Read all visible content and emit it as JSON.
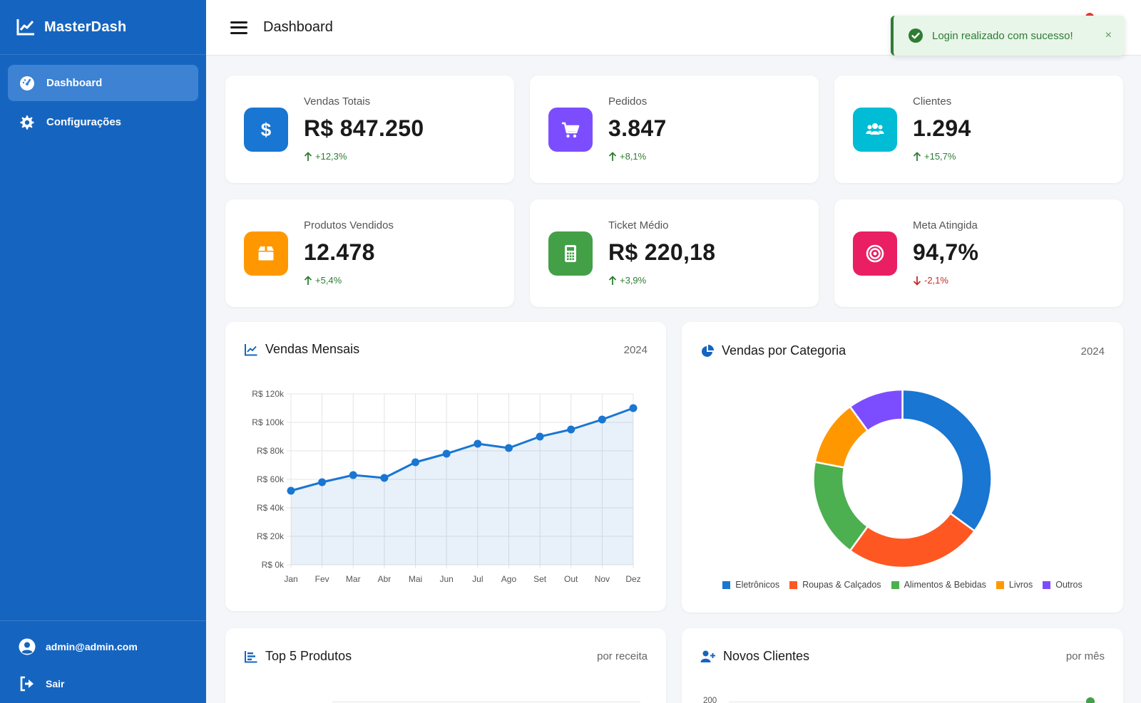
{
  "brand": {
    "name": "MasterDash"
  },
  "sidebar": {
    "items": [
      {
        "label": "Dashboard",
        "icon": "gauge-icon",
        "active": true
      },
      {
        "label": "Configurações",
        "icon": "gear-icon",
        "active": false
      }
    ],
    "user_email": "admin@admin.com",
    "logout_label": "Sair"
  },
  "header": {
    "title": "Dashboard"
  },
  "toast": {
    "message": "Login realizado com sucesso!",
    "close": "×"
  },
  "stats": [
    {
      "label": "Vendas Totais",
      "value": "R$ 847.250",
      "trend": "+12,3%",
      "direction": "up",
      "icon": "dollar-icon",
      "color": "#1976d2"
    },
    {
      "label": "Pedidos",
      "value": "3.847",
      "trend": "+8,1%",
      "direction": "up",
      "icon": "cart-icon",
      "color": "#7c4dff"
    },
    {
      "label": "Clientes",
      "value": "1.294",
      "trend": "+15,7%",
      "direction": "up",
      "icon": "users-icon",
      "color": "#00bcd4"
    },
    {
      "label": "Produtos Vendidos",
      "value": "12.478",
      "trend": "+5,4%",
      "direction": "up",
      "icon": "box-icon",
      "color": "#ff9800"
    },
    {
      "label": "Ticket Médio",
      "value": "R$ 220,18",
      "trend": "+3,9%",
      "direction": "up",
      "icon": "calculator-icon",
      "color": "#43a047"
    },
    {
      "label": "Meta Atingida",
      "value": "94,7%",
      "trend": "-2,1%",
      "direction": "down",
      "icon": "target-icon",
      "color": "#e91e63"
    }
  ],
  "line_card": {
    "title": "Vendas Mensais",
    "meta": "2024"
  },
  "donut_card": {
    "title": "Vendas por Categoria",
    "meta": "2024"
  },
  "top_card": {
    "title": "Top 5 Produtos",
    "meta": "por receita"
  },
  "clients_card": {
    "title": "Novos Clientes",
    "meta": "por mês",
    "first_tick": "200"
  },
  "chart_data": [
    {
      "type": "line",
      "title": "Vendas Mensais",
      "categories": [
        "Jan",
        "Fev",
        "Mar",
        "Abr",
        "Mai",
        "Jun",
        "Jul",
        "Ago",
        "Set",
        "Out",
        "Nov",
        "Dez"
      ],
      "values": [
        52000,
        58000,
        63000,
        61000,
        72000,
        78000,
        85000,
        82000,
        90000,
        95000,
        102000,
        110000
      ],
      "ylim": [
        0,
        120000
      ],
      "yticks": [
        "R$ 0k",
        "R$ 20k",
        "R$ 40k",
        "R$ 60k",
        "R$ 80k",
        "R$ 100k",
        "R$ 120k"
      ],
      "grid": true,
      "color": "#1976d2"
    },
    {
      "type": "pie",
      "title": "Vendas por Categoria",
      "categories": [
        "Eletrônicos",
        "Roupas & Calçados",
        "Alimentos & Bebidas",
        "Livros",
        "Outros"
      ],
      "values": [
        35,
        25,
        18,
        12,
        10
      ],
      "colors": [
        "#1976d2",
        "#ff5722",
        "#4caf50",
        "#ff9800",
        "#7c4dff"
      ],
      "legend": "bottom"
    }
  ]
}
